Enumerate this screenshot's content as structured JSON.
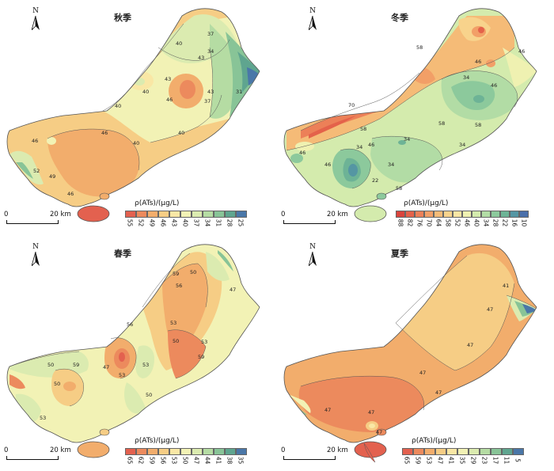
{
  "north_label": "N",
  "scale_start": "0",
  "scale_end": "20 km",
  "legend_title": "ρ(ATs)/(μg/L)",
  "panels": [
    {
      "title": "秋季",
      "legend_values": [
        "55",
        "52",
        "49",
        "46",
        "43",
        "40",
        "37",
        "34",
        "31",
        "28",
        "25"
      ],
      "legend_colors": [
        "#e3614f",
        "#ec8a5d",
        "#f2ad6c",
        "#f6cd85",
        "#f9e7a5",
        "#f2f2b5",
        "#dbebb0",
        "#b5dca3",
        "#88c497",
        "#5fa58f",
        "#4a77a8"
      ],
      "contour_labels": [
        "40",
        "37",
        "34",
        "31",
        "40",
        "43",
        "46",
        "40",
        "43",
        "46",
        "40",
        "43",
        "37",
        "46",
        "46",
        "49",
        "52",
        "40"
      ]
    },
    {
      "title": "冬季",
      "legend_values": [
        "88",
        "82",
        "76",
        "70",
        "64",
        "58",
        "52",
        "46",
        "40",
        "34",
        "28",
        "22",
        "16",
        "10"
      ],
      "legend_colors": [
        "#d9443c",
        "#e4624a",
        "#ec8058",
        "#f29f67",
        "#f5bb77",
        "#f8d38c",
        "#f9e6a4",
        "#eff1b1",
        "#d4ebad",
        "#b2dca5",
        "#8cc99c",
        "#6db396",
        "#5596a3",
        "#4a6faa"
      ],
      "contour_labels": [
        "58",
        "46",
        "46",
        "70",
        "58",
        "46",
        "34",
        "58",
        "34",
        "46",
        "58",
        "22",
        "34",
        "46",
        "34",
        "34",
        "58",
        "46"
      ]
    },
    {
      "title": "春季",
      "legend_values": [
        "65",
        "62",
        "59",
        "56",
        "53",
        "50",
        "47",
        "44",
        "41",
        "38",
        "35"
      ],
      "legend_colors": [
        "#e3614f",
        "#ec8a5d",
        "#f2ad6c",
        "#f6cd85",
        "#f9e7a5",
        "#f2f2b5",
        "#dbebb0",
        "#b5dca3",
        "#88c497",
        "#5fa58f",
        "#4a77a8"
      ],
      "contour_labels": [
        "59",
        "56",
        "50",
        "47",
        "56",
        "53",
        "50",
        "53",
        "59",
        "53",
        "50",
        "53",
        "47",
        "50",
        "50",
        "53",
        "59"
      ]
    },
    {
      "title": "夏季",
      "legend_values": [
        "65",
        "59",
        "53",
        "47",
        "41",
        "35",
        "29",
        "23",
        "17",
        "11",
        "5"
      ],
      "legend_colors": [
        "#e3614f",
        "#ec8a5d",
        "#f2ad6c",
        "#f6cd85",
        "#f9e7a5",
        "#f2f2b5",
        "#dbebb0",
        "#b5dca3",
        "#88c497",
        "#5fa58f",
        "#4a77a8"
      ],
      "contour_labels": [
        "41",
        "47",
        "47",
        "47",
        "47",
        "47",
        "47",
        "47"
      ]
    }
  ]
}
